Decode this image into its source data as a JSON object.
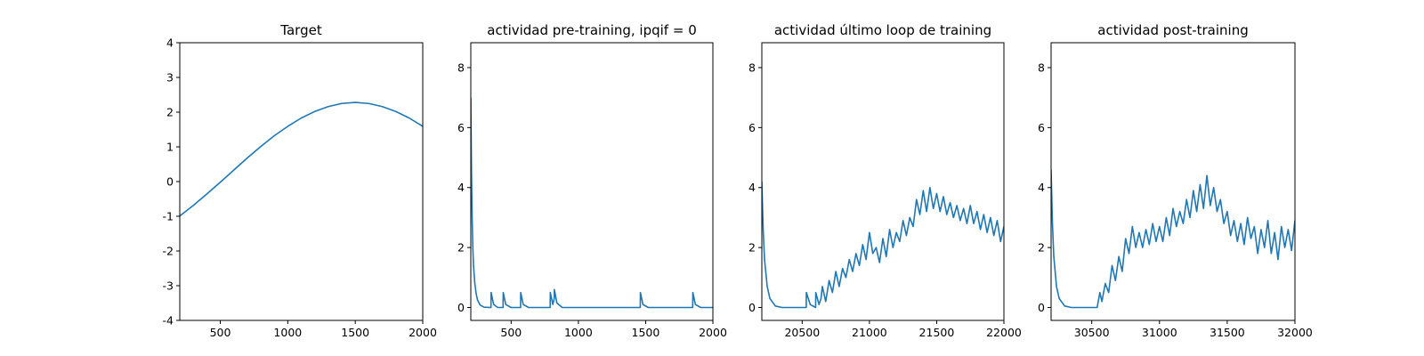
{
  "chart_data": [
    {
      "type": "line",
      "title": "Target",
      "color": "#1f77b4",
      "x": [
        200,
        300,
        400,
        500,
        600,
        700,
        800,
        900,
        1000,
        1100,
        1200,
        1300,
        1400,
        1500,
        1600,
        1700,
        1800,
        1900,
        2000
      ],
      "values": [
        -0.99,
        -0.69,
        -0.36,
        -0.02,
        0.33,
        0.68,
        1.01,
        1.32,
        1.59,
        1.83,
        2.02,
        2.16,
        2.25,
        2.28,
        2.25,
        2.16,
        2.02,
        1.83,
        1.59
      ],
      "xlim": [
        200,
        2000
      ],
      "xticks": [
        500,
        1000,
        1500,
        2000
      ],
      "ylim": [
        -4,
        4
      ],
      "yticks": [
        -4,
        -3,
        -2,
        -1,
        0,
        1,
        2,
        3,
        4
      ]
    },
    {
      "type": "line",
      "title": "actividad pre-training, ipqif = 0",
      "color": "#1f77b4",
      "x": [
        200,
        205,
        210,
        215,
        220,
        230,
        240,
        250,
        270,
        300,
        350,
        351,
        370,
        400,
        440,
        441,
        460,
        500,
        570,
        571,
        590,
        630,
        790,
        791,
        810,
        820,
        821,
        840,
        880,
        1460,
        1461,
        1480,
        1520,
        1850,
        1851,
        1870,
        1910,
        2000
      ],
      "values": [
        7.0,
        4.5,
        3.0,
        2.0,
        1.4,
        0.8,
        0.45,
        0.25,
        0.08,
        0.01,
        0,
        0.5,
        0.1,
        0,
        0,
        0.5,
        0.1,
        0,
        0,
        0.5,
        0.1,
        0,
        0,
        0.5,
        0.1,
        0.3,
        0.6,
        0.15,
        0,
        0,
        0.5,
        0.1,
        0,
        0,
        0.5,
        0.1,
        0,
        0
      ],
      "xlim": [
        200,
        2000
      ],
      "xticks": [
        500,
        1000,
        1500,
        2000
      ],
      "ylim": [
        -0.43,
        8.83
      ],
      "yticks": [
        0,
        2,
        4,
        6,
        8
      ]
    },
    {
      "type": "line",
      "title": "actividad último loop de training",
      "color": "#1f77b4",
      "x": [
        20200,
        20210,
        20220,
        20240,
        20260,
        20300,
        20350,
        20400,
        20500,
        20530,
        20531,
        20560,
        20600,
        20601,
        20625,
        20640,
        20650,
        20675,
        20700,
        20725,
        20750,
        20775,
        20800,
        20825,
        20850,
        20875,
        20900,
        20925,
        20950,
        20975,
        21000,
        21025,
        21050,
        21075,
        21100,
        21125,
        21150,
        21175,
        21200,
        21225,
        21250,
        21275,
        21300,
        21325,
        21350,
        21375,
        21400,
        21425,
        21450,
        21475,
        21500,
        21525,
        21550,
        21575,
        21600,
        21625,
        21650,
        21675,
        21700,
        21725,
        21750,
        21775,
        21800,
        21825,
        21850,
        21875,
        21900,
        21925,
        21950,
        21975,
        22000
      ],
      "values": [
        4.2,
        2.6,
        1.6,
        0.7,
        0.3,
        0.05,
        0,
        0,
        0,
        0,
        0.5,
        0.1,
        0,
        0.5,
        0.1,
        0.3,
        0.7,
        0.2,
        0.9,
        0.5,
        1.2,
        0.7,
        1.3,
        1.0,
        1.6,
        1.2,
        1.8,
        1.4,
        2.1,
        1.6,
        2.5,
        1.8,
        2.0,
        1.5,
        2.3,
        1.7,
        2.6,
        2.0,
        2.5,
        2.2,
        2.9,
        2.4,
        3.0,
        2.7,
        3.6,
        3.1,
        3.9,
        3.2,
        4.0,
        3.3,
        3.8,
        3.2,
        3.7,
        3.1,
        3.5,
        3.0,
        3.4,
        2.9,
        3.3,
        2.8,
        3.4,
        2.8,
        3.2,
        2.6,
        3.1,
        2.5,
        3.0,
        2.4,
        2.9,
        2.2,
        2.7
      ],
      "xlim": [
        20200,
        22000
      ],
      "xticks": [
        20500,
        21000,
        21500,
        22000
      ],
      "ylim": [
        -0.43,
        8.83
      ],
      "yticks": [
        0,
        2,
        4,
        6,
        8
      ]
    },
    {
      "type": "line",
      "title": "actividad post-training",
      "color": "#1f77b4",
      "x": [
        30200,
        30210,
        30220,
        30240,
        30260,
        30300,
        30350,
        30540,
        30560,
        30575,
        30600,
        30625,
        30650,
        30675,
        30700,
        30725,
        30750,
        30775,
        30800,
        30825,
        30850,
        30875,
        30900,
        30925,
        30950,
        30975,
        31000,
        31025,
        31050,
        31075,
        31100,
        31125,
        31150,
        31175,
        31200,
        31225,
        31250,
        31275,
        31300,
        31325,
        31350,
        31375,
        31400,
        31425,
        31450,
        31475,
        31500,
        31525,
        31550,
        31575,
        31600,
        31625,
        31650,
        31675,
        31700,
        31725,
        31750,
        31775,
        31800,
        31825,
        31850,
        31875,
        31900,
        31925,
        31950,
        31975,
        32000
      ],
      "values": [
        4.6,
        2.8,
        1.7,
        0.7,
        0.3,
        0.05,
        0,
        0,
        0.5,
        0.2,
        0.8,
        0.5,
        1.4,
        0.9,
        1.7,
        1.2,
        2.3,
        1.8,
        2.7,
        2.0,
        2.5,
        2.0,
        2.6,
        2.1,
        2.8,
        2.2,
        2.7,
        2.2,
        3.0,
        2.4,
        3.3,
        2.7,
        3.2,
        2.8,
        3.6,
        3.0,
        3.9,
        3.2,
        4.1,
        3.3,
        4.4,
        3.4,
        4.0,
        3.2,
        3.6,
        2.8,
        3.2,
        2.4,
        2.9,
        2.2,
        2.8,
        2.1,
        3.0,
        2.3,
        2.7,
        1.8,
        2.6,
        2.0,
        2.9,
        1.8,
        2.5,
        1.6,
        2.7,
        2.0,
        2.6,
        1.9,
        2.9
      ],
      "xlim": [
        30200,
        32000
      ],
      "xticks": [
        30500,
        31000,
        31500,
        32000
      ],
      "ylim": [
        -0.43,
        8.83
      ],
      "yticks": [
        0,
        2,
        4,
        6,
        8
      ]
    }
  ]
}
